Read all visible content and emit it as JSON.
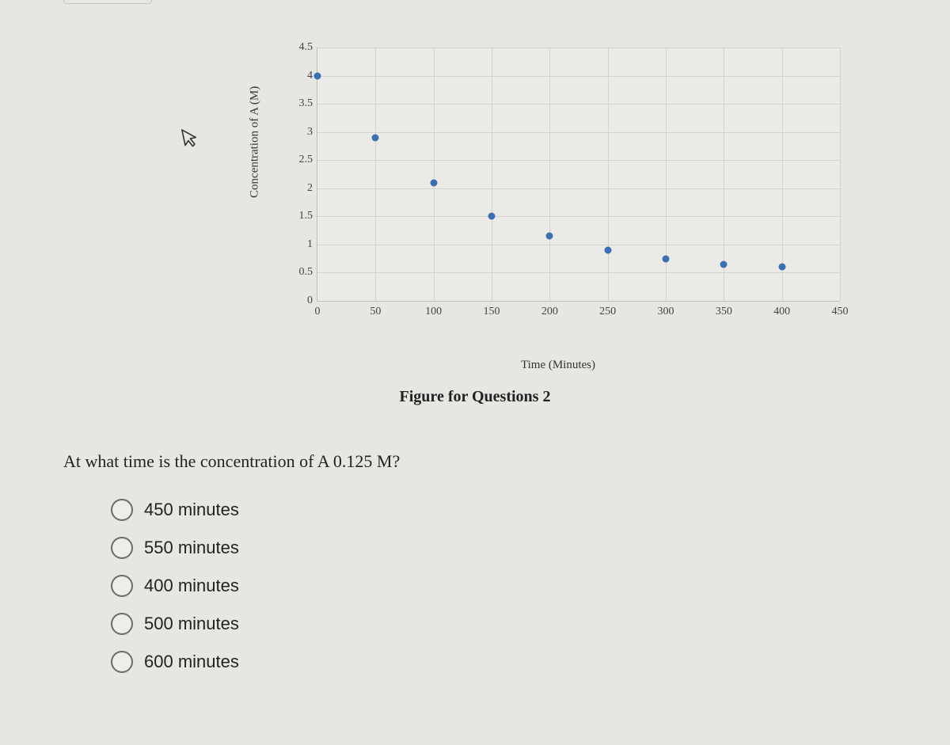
{
  "chart": {
    "type": "scatter",
    "xlabel": "Time (Minutes)",
    "ylabel": "Concentration of A (M)",
    "xlim": [
      0,
      450
    ],
    "ylim": [
      0,
      4.5
    ],
    "xtick_step": 50,
    "ytick_step": 0.5,
    "xticks": [
      "0",
      "50",
      "100",
      "150",
      "200",
      "250",
      "300",
      "350",
      "400",
      "450"
    ],
    "yticks": [
      "0",
      "0.5",
      "1",
      "1.5",
      "2",
      "2.5",
      "3",
      "3.5",
      "4",
      "4.5"
    ],
    "background_color": "#eceae7",
    "grid_color": "#d4d2ce",
    "axis_color": "#bdbdbd",
    "tick_fontsize": 14,
    "label_fontsize": 15,
    "marker_color": "#3b6fb3",
    "marker_size": 9,
    "points": [
      {
        "x": 0,
        "y": 4.0
      },
      {
        "x": 50,
        "y": 2.9
      },
      {
        "x": 100,
        "y": 2.1
      },
      {
        "x": 150,
        "y": 1.5
      },
      {
        "x": 200,
        "y": 1.15
      },
      {
        "x": 250,
        "y": 0.9
      },
      {
        "x": 300,
        "y": 0.75
      },
      {
        "x": 350,
        "y": 0.65
      },
      {
        "x": 400,
        "y": 0.6
      }
    ]
  },
  "caption": "Figure for Questions 2",
  "question_text": "At what time is the concentration of A 0.125 M?",
  "options": [
    {
      "label": "450 minutes",
      "selected": false
    },
    {
      "label": "550 minutes",
      "selected": false
    },
    {
      "label": "400 minutes",
      "selected": false
    },
    {
      "label": "500 minutes",
      "selected": false
    },
    {
      "label": "600 minutes",
      "selected": false
    }
  ]
}
